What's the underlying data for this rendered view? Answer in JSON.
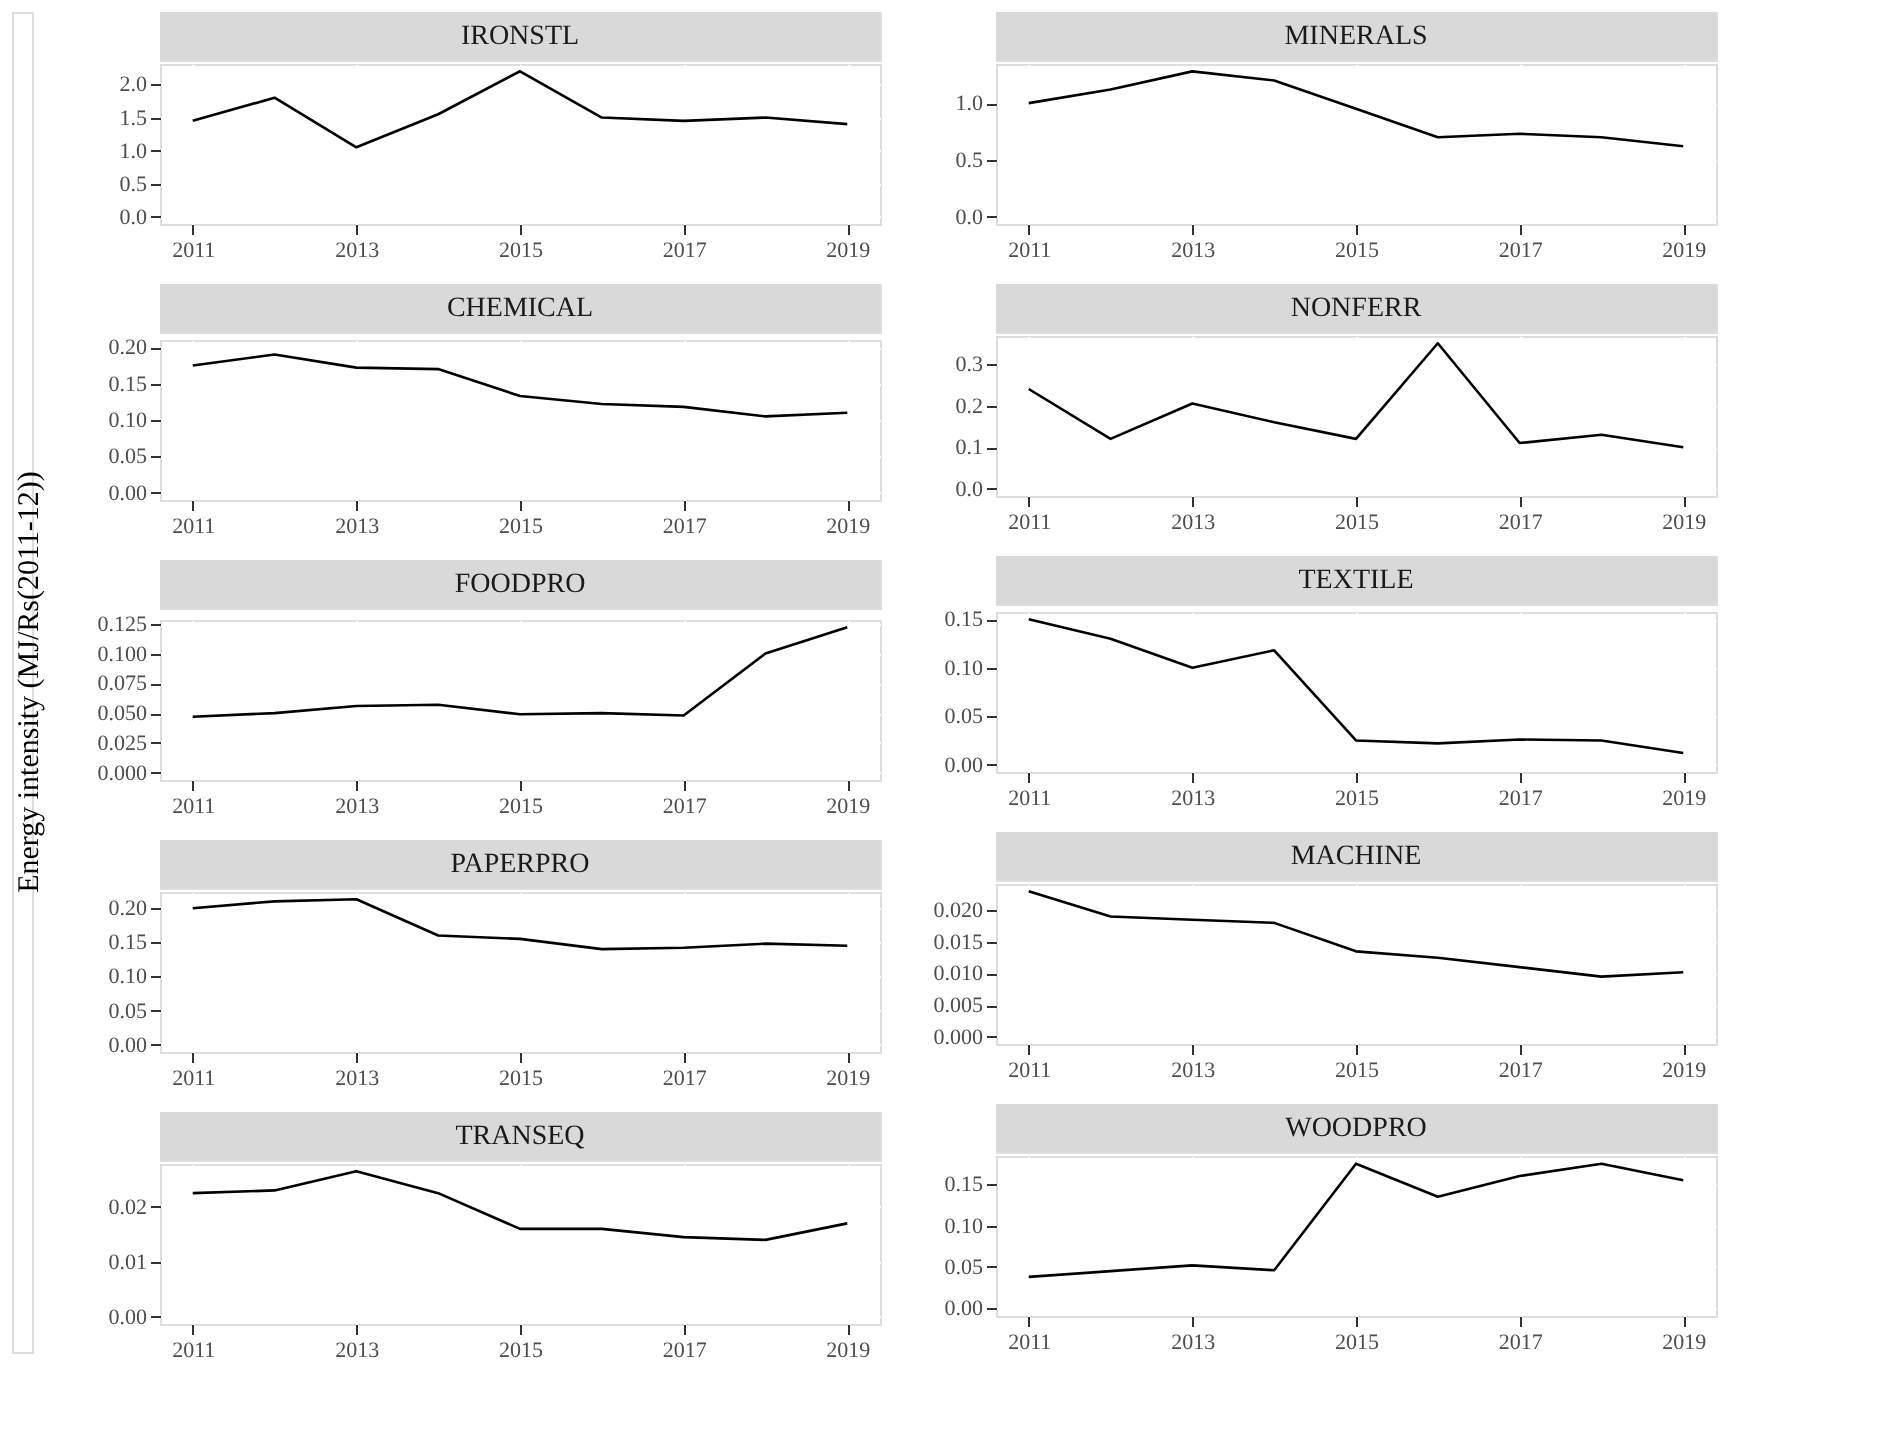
{
  "chart_data": [
    {
      "type": "line",
      "title": "IRONSTL",
      "x": [
        2011,
        2012,
        2013,
        2014,
        2015,
        2016,
        2017,
        2018,
        2019
      ],
      "series": [
        {
          "color": "#000000",
          "values": [
            1.45,
            1.8,
            1.05,
            1.55,
            2.2,
            1.5,
            1.45,
            1.5,
            1.4
          ]
        }
      ],
      "xlim": [
        2010.6,
        2019.4
      ],
      "xticks": [
        2011,
        2013,
        2015,
        2017,
        2019
      ],
      "ylim": [
        -0.11,
        2.31
      ],
      "yticks": [
        {
          "value": 0,
          "label": "0.0"
        },
        {
          "value": 0.5,
          "label": "0.5"
        },
        {
          "value": 1,
          "label": "1.0"
        },
        {
          "value": 1.5,
          "label": "1.5"
        },
        {
          "value": 2,
          "label": "2.0"
        }
      ],
      "grid": true
    },
    {
      "type": "line",
      "title": "MINERALS",
      "x": [
        2011,
        2012,
        2013,
        2014,
        2015,
        2016,
        2017,
        2018,
        2019
      ],
      "series": [
        {
          "color": "#000000",
          "values": [
            1.0,
            1.12,
            1.28,
            1.2,
            0.95,
            0.7,
            0.73,
            0.7,
            0.62
          ]
        }
      ],
      "xlim": [
        2010.6,
        2019.4
      ],
      "xticks": [
        2011,
        2013,
        2015,
        2017,
        2019
      ],
      "ylim": [
        -0.065,
        1.345
      ],
      "yticks": [
        {
          "value": 0,
          "label": "0.0"
        },
        {
          "value": 0.5,
          "label": "0.5"
        },
        {
          "value": 1,
          "label": "1.0"
        }
      ],
      "grid": true
    },
    {
      "type": "line",
      "title": "CHEMICAL",
      "x": [
        2011,
        2012,
        2013,
        2014,
        2015,
        2016,
        2017,
        2018,
        2019
      ],
      "series": [
        {
          "color": "#000000",
          "values": [
            0.175,
            0.19,
            0.172,
            0.17,
            0.133,
            0.122,
            0.118,
            0.105,
            0.11
          ]
        }
      ],
      "xlim": [
        2010.6,
        2019.4
      ],
      "xticks": [
        2011,
        2013,
        2015,
        2017,
        2019
      ],
      "ylim": [
        -0.01,
        0.21
      ],
      "yticks": [
        {
          "value": 0,
          "label": "0.00"
        },
        {
          "value": 0.05,
          "label": "0.05"
        },
        {
          "value": 0.1,
          "label": "0.10"
        },
        {
          "value": 0.15,
          "label": "0.15"
        },
        {
          "value": 0.2,
          "label": "0.20"
        }
      ],
      "grid": true
    },
    {
      "type": "line",
      "title": "NONFERR",
      "x": [
        2011,
        2012,
        2013,
        2014,
        2015,
        2016,
        2017,
        2018,
        2019
      ],
      "series": [
        {
          "color": "#000000",
          "values": [
            0.24,
            0.12,
            0.205,
            0.16,
            0.12,
            0.35,
            0.11,
            0.13,
            0.1
          ]
        }
      ],
      "xlim": [
        2010.6,
        2019.4
      ],
      "xticks": [
        2011,
        2013,
        2015,
        2017,
        2019
      ],
      "ylim": [
        -0.0175,
        0.3675
      ],
      "yticks": [
        {
          "value": 0,
          "label": "0.0"
        },
        {
          "value": 0.1,
          "label": "0.1"
        },
        {
          "value": 0.2,
          "label": "0.2"
        },
        {
          "value": 0.3,
          "label": "0.3"
        }
      ],
      "grid": true
    },
    {
      "type": "line",
      "title": "FOODPRO",
      "ylabel": "Energy intensity (MJ/Rs(2011-12))",
      "x": [
        2011,
        2012,
        2013,
        2014,
        2015,
        2016,
        2017,
        2018,
        2019
      ],
      "series": [
        {
          "color": "#000000",
          "values": [
            0.047,
            0.05,
            0.056,
            0.057,
            0.049,
            0.05,
            0.048,
            0.1,
            0.122
          ]
        }
      ],
      "xlim": [
        2010.6,
        2019.4
      ],
      "xticks": [
        2011,
        2013,
        2015,
        2017,
        2019
      ],
      "ylim": [
        -0.0061,
        0.1281
      ],
      "yticks": [
        {
          "value": 0,
          "label": "0.000"
        },
        {
          "value": 0.025,
          "label": "0.025"
        },
        {
          "value": 0.05,
          "label": "0.050"
        },
        {
          "value": 0.075,
          "label": "0.075"
        },
        {
          "value": 0.1,
          "label": "0.100"
        },
        {
          "value": 0.125,
          "label": "0.125"
        }
      ],
      "grid": true
    },
    {
      "type": "line",
      "title": "TEXTILE",
      "x": [
        2011,
        2012,
        2013,
        2014,
        2015,
        2016,
        2017,
        2018,
        2019
      ],
      "series": [
        {
          "color": "#000000",
          "values": [
            0.15,
            0.13,
            0.1,
            0.118,
            0.025,
            0.022,
            0.026,
            0.025,
            0.012
          ]
        }
      ],
      "xlim": [
        2010.6,
        2019.4
      ],
      "xticks": [
        2011,
        2013,
        2015,
        2017,
        2019
      ],
      "ylim": [
        -0.0075,
        0.1575
      ],
      "yticks": [
        {
          "value": 0,
          "label": "0.00"
        },
        {
          "value": 0.05,
          "label": "0.05"
        },
        {
          "value": 0.1,
          "label": "0.10"
        },
        {
          "value": 0.15,
          "label": "0.15"
        }
      ],
      "grid": true
    },
    {
      "type": "line",
      "title": "PAPERPRO",
      "x": [
        2011,
        2012,
        2013,
        2014,
        2015,
        2016,
        2017,
        2018,
        2019
      ],
      "series": [
        {
          "color": "#000000",
          "values": [
            0.2,
            0.21,
            0.213,
            0.16,
            0.155,
            0.14,
            0.142,
            0.148,
            0.145
          ]
        }
      ],
      "xlim": [
        2010.6,
        2019.4
      ],
      "xticks": [
        2011,
        2013,
        2015,
        2017,
        2019
      ],
      "ylim": [
        -0.0107,
        0.2237
      ],
      "yticks": [
        {
          "value": 0,
          "label": "0.00"
        },
        {
          "value": 0.05,
          "label": "0.05"
        },
        {
          "value": 0.1,
          "label": "0.10"
        },
        {
          "value": 0.15,
          "label": "0.15"
        },
        {
          "value": 0.2,
          "label": "0.20"
        }
      ],
      "grid": true
    },
    {
      "type": "line",
      "title": "MACHINE",
      "x": [
        2011,
        2012,
        2013,
        2014,
        2015,
        2016,
        2017,
        2018,
        2019
      ],
      "series": [
        {
          "color": "#000000",
          "values": [
            0.023,
            0.019,
            0.0185,
            0.018,
            0.0135,
            0.0125,
            0.011,
            0.0095,
            0.0102
          ]
        }
      ],
      "xlim": [
        2010.6,
        2019.4
      ],
      "xticks": [
        2011,
        2013,
        2015,
        2017,
        2019
      ],
      "ylim": [
        -0.00115,
        0.02415
      ],
      "yticks": [
        {
          "value": 0,
          "label": "0.000"
        },
        {
          "value": 0.005,
          "label": "0.005"
        },
        {
          "value": 0.01,
          "label": "0.010"
        },
        {
          "value": 0.015,
          "label": "0.015"
        },
        {
          "value": 0.02,
          "label": "0.020"
        }
      ],
      "grid": true
    },
    {
      "type": "line",
      "title": "TRANSEQ",
      "x": [
        2011,
        2012,
        2013,
        2014,
        2015,
        2016,
        2017,
        2018,
        2019
      ],
      "series": [
        {
          "color": "#000000",
          "values": [
            0.0225,
            0.023,
            0.0265,
            0.0225,
            0.016,
            0.016,
            0.0145,
            0.014,
            0.017
          ]
        }
      ],
      "xlim": [
        2010.6,
        2019.4
      ],
      "xticks": [
        2011,
        2013,
        2015,
        2017,
        2019
      ],
      "ylim": [
        -0.0013,
        0.0278
      ],
      "yticks": [
        {
          "value": 0,
          "label": "0.00"
        },
        {
          "value": 0.01,
          "label": "0.01"
        },
        {
          "value": 0.02,
          "label": "0.02"
        }
      ],
      "grid": true
    },
    {
      "type": "line",
      "title": "WOODPRO",
      "x": [
        2011,
        2012,
        2013,
        2014,
        2015,
        2016,
        2017,
        2018,
        2019
      ],
      "series": [
        {
          "color": "#000000",
          "values": [
            0.038,
            0.045,
            0.052,
            0.046,
            0.175,
            0.135,
            0.16,
            0.175,
            0.155
          ]
        }
      ],
      "xlim": [
        2010.6,
        2019.4
      ],
      "xticks": [
        2011,
        2013,
        2015,
        2017,
        2019
      ],
      "ylim": [
        -0.0093,
        0.1843
      ],
      "yticks": [
        {
          "value": 0,
          "label": "0.00"
        },
        {
          "value": 0.05,
          "label": "0.05"
        },
        {
          "value": 0.1,
          "label": "0.10"
        },
        {
          "value": 0.15,
          "label": "0.15"
        }
      ],
      "grid": true
    }
  ]
}
